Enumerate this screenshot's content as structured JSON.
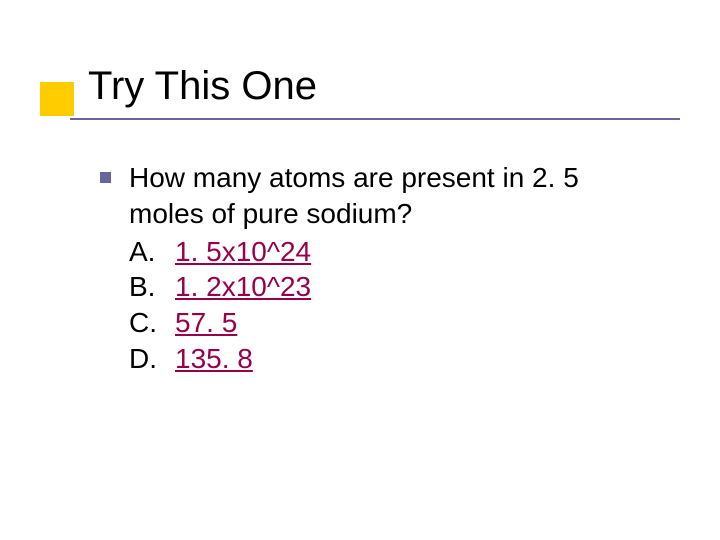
{
  "title": {
    "text": "Try This One",
    "text_color": "#000000",
    "fontsize": 40,
    "accent_square_color": "#ffcc00",
    "accent_square_size": 34,
    "rule_color": "#666699",
    "rule_thickness": 2
  },
  "bullet": {
    "color": "#666699",
    "size": 11
  },
  "body_fontsize": 28,
  "question": "How many atoms are present in 2. 5 moles of pure sodium?",
  "link_color": "#99004c",
  "options": [
    {
      "letter": "A.",
      "value": "1. 5x10^24"
    },
    {
      "letter": "B.",
      "value": "1. 2x10^23"
    },
    {
      "letter": "C.",
      "value": "57. 5"
    },
    {
      "letter": "D.",
      "value": "135. 8"
    }
  ],
  "background_color": "#ffffff"
}
